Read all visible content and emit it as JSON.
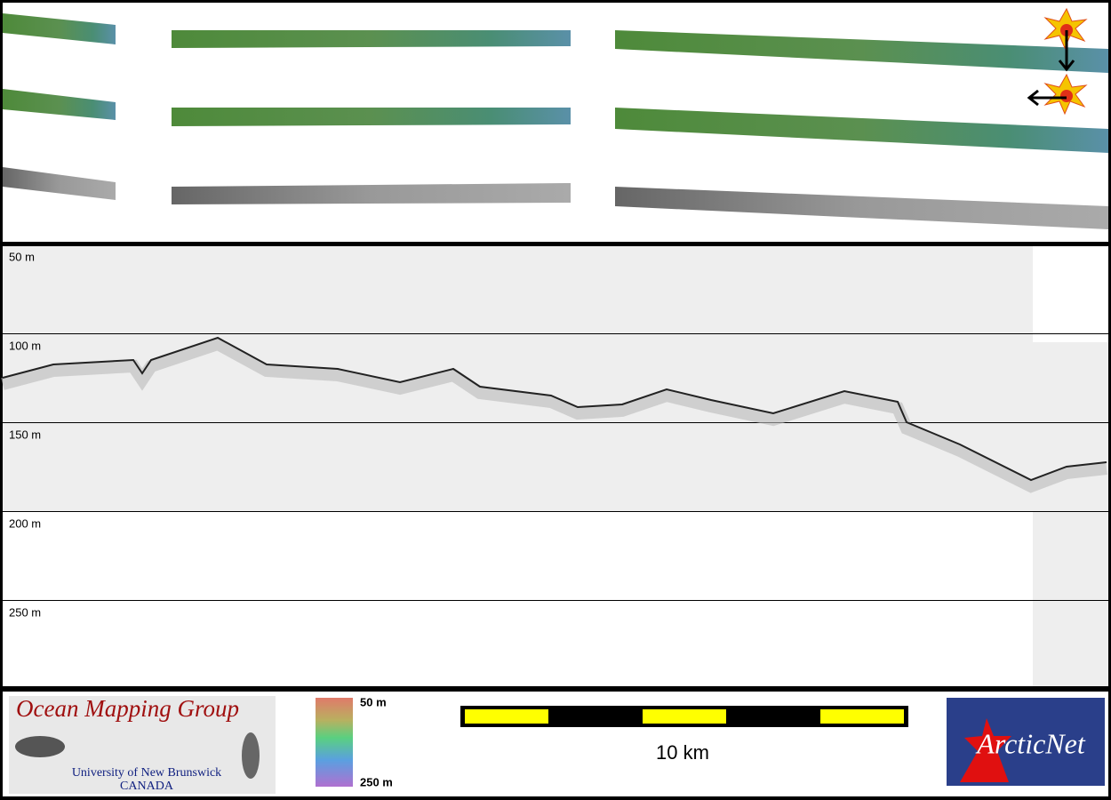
{
  "profile": {
    "depth_labels": [
      "50 m",
      "100 m",
      "150 m",
      "200 m",
      "250 m"
    ]
  },
  "legend": {
    "top": "50 m",
    "bottom": "250 m"
  },
  "scale_bar": {
    "label": "10 km"
  },
  "logos": {
    "omg_title": "Ocean Mapping Group",
    "omg_university": "University of New Brunswick",
    "omg_country": "CANADA",
    "arcticnet": "ArcticNet"
  }
}
